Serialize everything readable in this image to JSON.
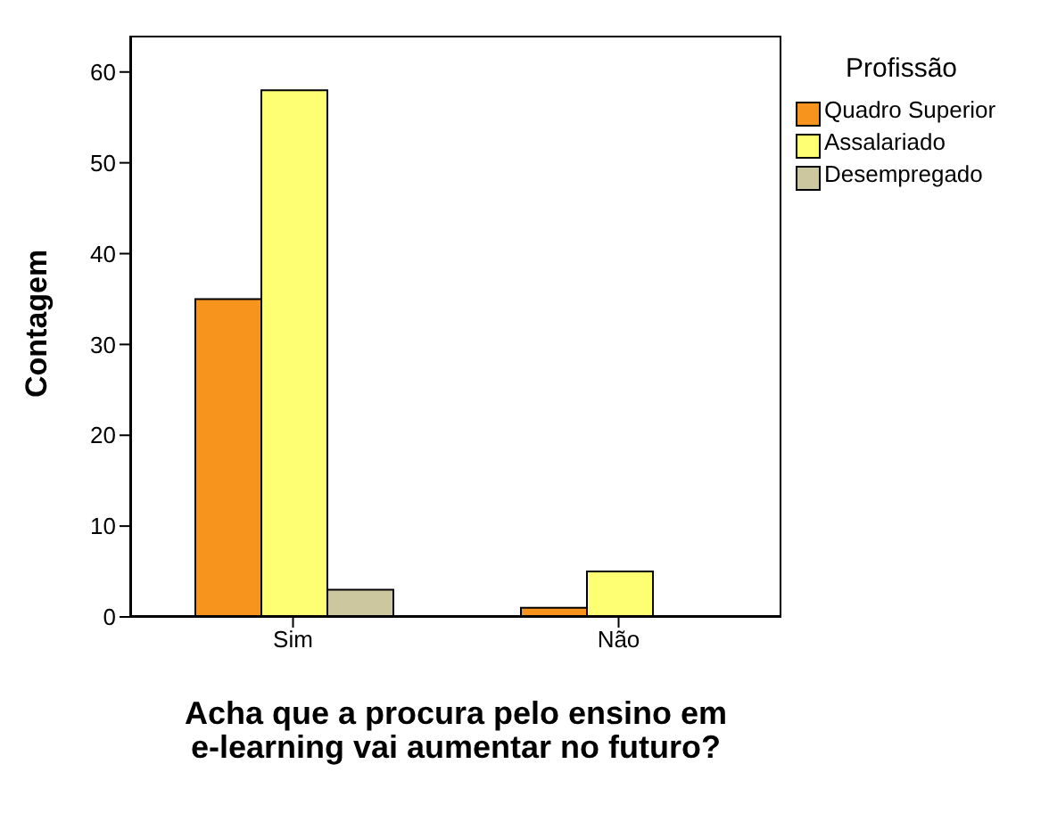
{
  "chart_data": {
    "type": "bar",
    "xlabel": "Acha que a procura pelo ensino em e-learning vai aumentar no futuro?",
    "ylabel": "Contagem",
    "legend_title": "Profissão",
    "categories": [
      "Sim",
      "Não"
    ],
    "series": [
      {
        "name": "Quadro Superior",
        "color": "#f7941e",
        "values": [
          35,
          1
        ]
      },
      {
        "name": "Assalariado",
        "color": "#ffff73",
        "values": [
          58,
          5
        ]
      },
      {
        "name": "Desempregado",
        "color": "#cdc79f",
        "values": [
          3,
          0
        ]
      }
    ],
    "ylim": [
      0,
      64
    ],
    "yticks": [
      0,
      10,
      20,
      30,
      40,
      50,
      60
    ],
    "grid": false,
    "legend": "right"
  }
}
